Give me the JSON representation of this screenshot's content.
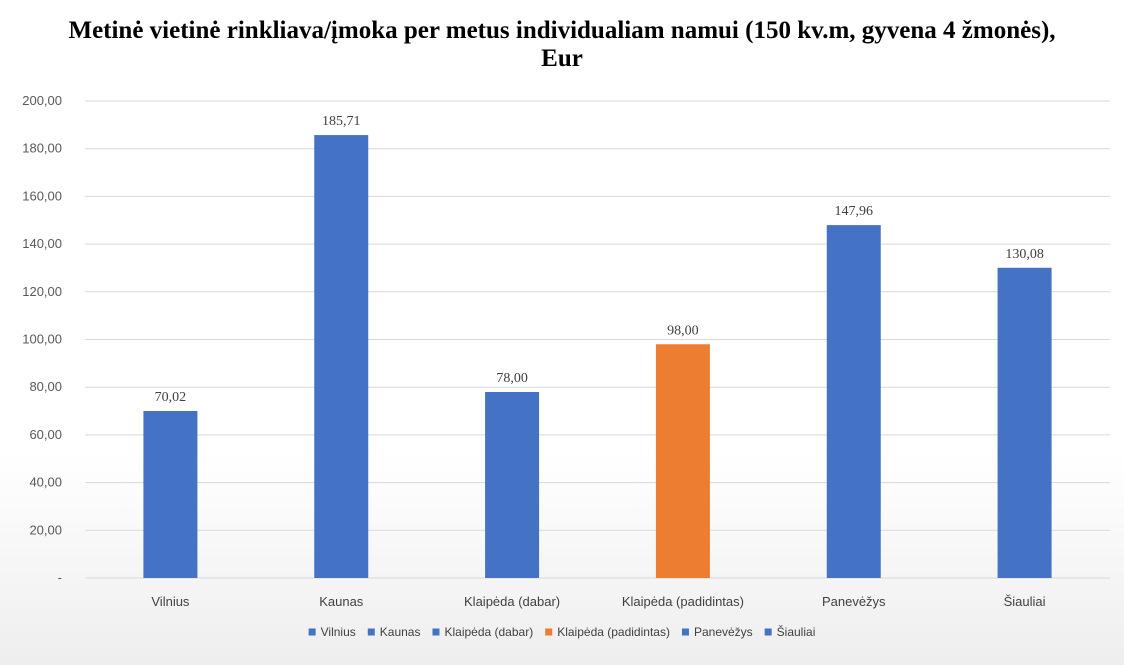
{
  "chart_data": {
    "type": "bar",
    "title_lines": [
      "Metinė vietinė rinkliava/įmoka per metus individualiam namui (150 kv.m, gyvena 4 žmonės),",
      "Eur"
    ],
    "categories": [
      "Vilnius",
      "Kaunas",
      "Klaipėda (dabar)",
      "Klaipėda (padidintas)",
      "Panevėžys",
      "Šiauliai"
    ],
    "values": [
      70.02,
      185.71,
      78.0,
      98.0,
      147.96,
      130.08
    ],
    "data_labels": [
      "70,02",
      "185,71",
      "78,00",
      "98,00",
      "147,96",
      "130,08"
    ],
    "colors": [
      "#4472c4",
      "#4472c4",
      "#4472c4",
      "#ed7d31",
      "#4472c4",
      "#4472c4"
    ],
    "ylim": [
      0,
      200
    ],
    "y_ticks": [
      0,
      20,
      40,
      60,
      80,
      100,
      120,
      140,
      160,
      180,
      200
    ],
    "y_tick_labels": [
      "-",
      "20,00",
      "40,00",
      "60,00",
      "80,00",
      "100,00",
      "120,00",
      "140,00",
      "160,00",
      "180,00",
      "200,00"
    ],
    "grid": true,
    "legend": {
      "placement": "bottom",
      "entries": [
        "Vilnius",
        "Kaunas",
        "Klaipėda (dabar)",
        "Klaipėda (padidintas)",
        "Panevėžys",
        "Šiauliai"
      ]
    },
    "xlabel": "",
    "ylabel": ""
  }
}
